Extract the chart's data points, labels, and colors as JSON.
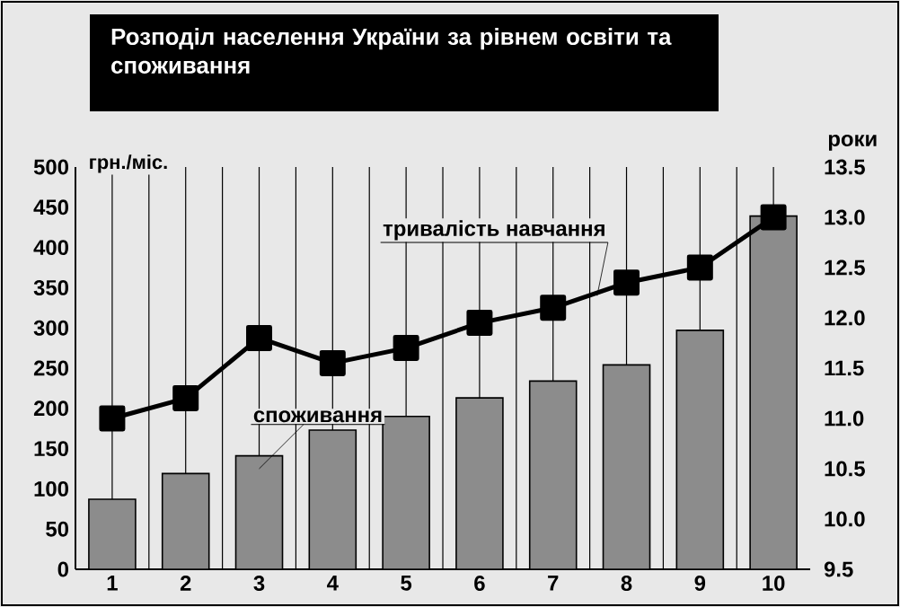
{
  "chart_data": {
    "type": "bar",
    "title": "Розподіл населення України за рівнем освіти та споживання",
    "ylabel": "грн./міс.",
    "y2label": "роки",
    "categories": [
      "1",
      "2",
      "3",
      "4",
      "5",
      "6",
      "7",
      "8",
      "9",
      "10"
    ],
    "series": [
      {
        "name": "споживання",
        "color": "#8c8c8c",
        "values": [
          87,
          119,
          141,
          173,
          190,
          213,
          234,
          254,
          297,
          439
        ]
      },
      {
        "name": "тривалість навчання",
        "type": "line",
        "axis": "y2",
        "color": "#000000",
        "marker": "square",
        "values": [
          11.0,
          11.2,
          11.8,
          11.55,
          11.7,
          11.95,
          12.1,
          12.35,
          12.5,
          13.0
        ]
      }
    ],
    "ylim": [
      0,
      500
    ],
    "yticks": [
      0,
      50,
      100,
      150,
      200,
      250,
      300,
      350,
      400,
      450,
      500
    ],
    "y2lim": [
      9.5,
      13.5
    ],
    "y2ticks": [
      {
        "value": 9.5,
        "label": "9.5"
      },
      {
        "value": 10,
        "label": "10.0"
      },
      {
        "value": 10.5,
        "label": "10.5"
      },
      {
        "value": 11,
        "label": "11.0"
      },
      {
        "value": 11.5,
        "label": "11.5"
      },
      {
        "value": 12,
        "label": "12.0"
      },
      {
        "value": 12.5,
        "label": "12.5"
      },
      {
        "value": 13,
        "label": "13.0"
      },
      {
        "value": 13.5,
        "label": "13.5"
      }
    ],
    "grid": "x"
  }
}
